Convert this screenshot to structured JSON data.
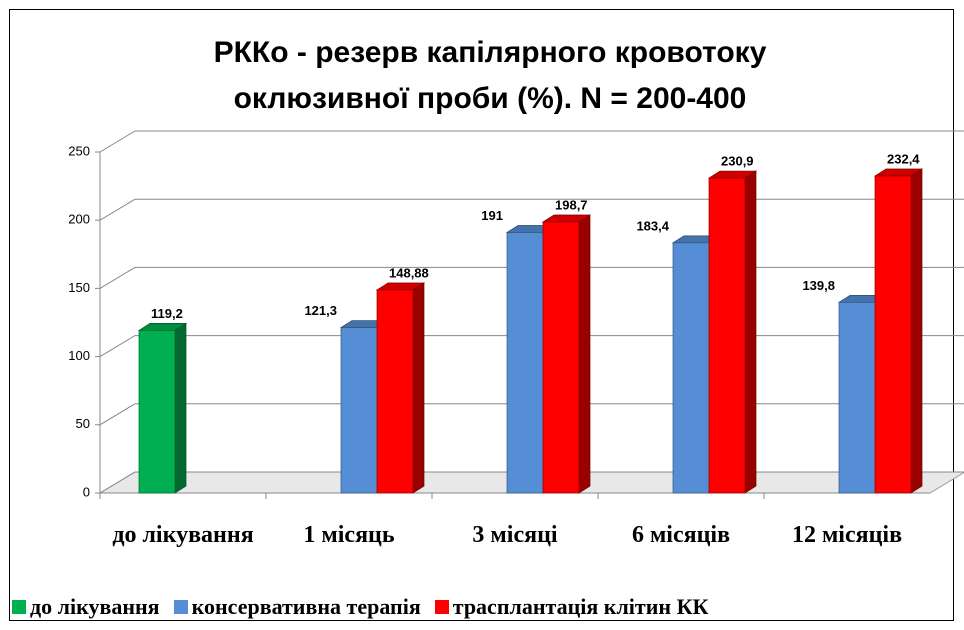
{
  "chart_data": {
    "type": "bar3d",
    "title": "РККо - резерв капілярного кровотоку оклюзивної проби (%). N = 200-400",
    "categories": [
      "до лікування",
      "1 місяць",
      "3 місяці",
      "6 місяців",
      "12 місяців"
    ],
    "series": [
      {
        "name": "до лікування",
        "color": "#00b050",
        "values": [
          119.2,
          null,
          null,
          null,
          null
        ],
        "value_labels": [
          "119,2",
          null,
          null,
          null,
          null
        ]
      },
      {
        "name": "консервативна терапія",
        "color": "#558ed5",
        "values": [
          null,
          121.3,
          191,
          183.4,
          139.8
        ],
        "value_labels": [
          null,
          "121,3",
          "191",
          "183,4",
          "139,8"
        ]
      },
      {
        "name": "трасплантація клітин КК",
        "color": "#ff0000",
        "values": [
          null,
          148.88,
          198.7,
          230.9,
          232.4
        ],
        "value_labels": [
          null,
          "148,88",
          "198,7",
          "230,9",
          "232,4"
        ]
      }
    ],
    "ylim": [
      0,
      250
    ],
    "yticks": [
      0,
      50,
      100,
      150,
      200,
      250
    ],
    "grid": true,
    "legend": "bottom"
  }
}
